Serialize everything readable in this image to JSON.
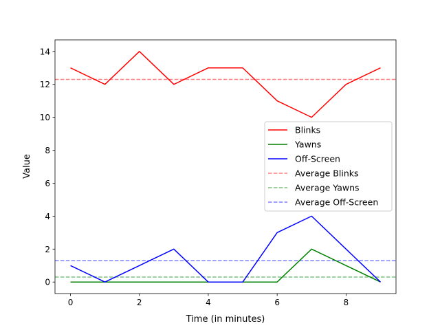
{
  "chart_data": {
    "type": "line",
    "title": "",
    "xlabel": "Time (in minutes)",
    "ylabel": "Value",
    "xlim": [
      -0.45,
      9.45
    ],
    "ylim": [
      -0.7,
      14.7
    ],
    "xticks": [
      0,
      2,
      4,
      6,
      8
    ],
    "yticks": [
      0,
      2,
      4,
      6,
      8,
      10,
      12,
      14
    ],
    "x": [
      0,
      1,
      2,
      3,
      4,
      5,
      6,
      7,
      8,
      9
    ],
    "series": [
      {
        "name": "Blinks",
        "color": "#ff0000",
        "values": [
          13,
          12,
          14,
          12,
          13,
          13,
          11,
          10,
          12,
          13
        ]
      },
      {
        "name": "Yawns",
        "color": "#008000",
        "values": [
          0,
          0,
          0,
          0,
          0,
          0,
          0,
          2,
          1,
          0
        ]
      },
      {
        "name": "Off-Screen",
        "color": "#0000ff",
        "values": [
          1,
          0,
          1,
          2,
          0,
          0,
          3,
          4,
          2,
          0
        ]
      }
    ],
    "averages": [
      {
        "name": "Average Blinks",
        "color": "#ff0000",
        "value": 12.3
      },
      {
        "name": "Average Yawns",
        "color": "#008000",
        "value": 0.3
      },
      {
        "name": "Average Off-Screen",
        "color": "#0000ff",
        "value": 1.3
      }
    ],
    "grid": false,
    "legend_position": "center-right"
  }
}
